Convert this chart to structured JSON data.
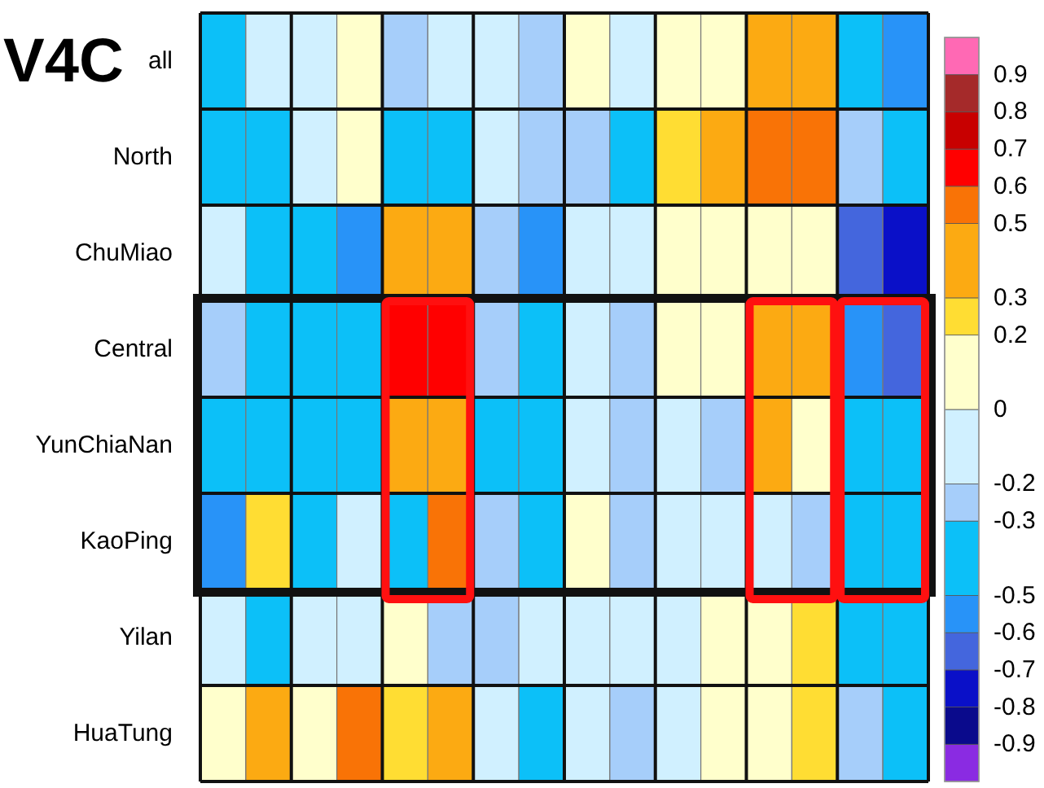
{
  "chart_data": {
    "type": "heatmap",
    "title": "V4C",
    "categories": [
      null,
      null,
      null,
      null,
      null,
      null,
      null,
      null,
      null,
      null,
      null,
      null,
      null,
      null,
      null,
      null
    ],
    "y_categories": [
      "all",
      "North",
      "ChuMiao",
      "Central",
      "YunChiaNan",
      "KaoPing",
      "Yilan",
      "HuaTung"
    ],
    "cells": [
      [
        -0.4,
        -0.1,
        -0.1,
        0.1,
        -0.25,
        -0.1,
        -0.1,
        -0.25,
        0.1,
        -0.1,
        0.1,
        0.1,
        0.4,
        0.4,
        -0.4,
        -0.55
      ],
      [
        -0.4,
        -0.4,
        -0.1,
        0.1,
        -0.4,
        -0.4,
        -0.1,
        -0.25,
        -0.25,
        -0.4,
        0.25,
        0.4,
        0.55,
        0.55,
        -0.25,
        -0.4
      ],
      [
        -0.1,
        -0.4,
        -0.4,
        -0.55,
        0.4,
        0.4,
        -0.25,
        -0.55,
        -0.1,
        -0.1,
        0.1,
        0.1,
        0.1,
        0.1,
        -0.65,
        -0.75
      ],
      [
        -0.25,
        -0.4,
        -0.4,
        -0.4,
        0.65,
        0.65,
        -0.25,
        -0.4,
        -0.1,
        -0.25,
        0.1,
        0.1,
        0.4,
        0.4,
        -0.55,
        -0.65
      ],
      [
        -0.4,
        -0.4,
        -0.4,
        -0.4,
        0.4,
        0.4,
        -0.4,
        -0.4,
        -0.1,
        -0.25,
        -0.1,
        -0.25,
        0.4,
        0.1,
        -0.4,
        -0.4
      ],
      [
        -0.55,
        0.25,
        -0.4,
        -0.1,
        -0.4,
        0.55,
        -0.25,
        -0.4,
        0.1,
        -0.25,
        -0.1,
        -0.1,
        -0.1,
        -0.25,
        -0.4,
        -0.4
      ],
      [
        -0.1,
        -0.4,
        -0.1,
        -0.1,
        0.1,
        -0.25,
        -0.25,
        -0.1,
        -0.1,
        -0.1,
        -0.1,
        0.1,
        0.1,
        0.25,
        -0.4,
        -0.4
      ],
      [
        0.1,
        0.4,
        0.1,
        0.55,
        0.25,
        0.4,
        -0.1,
        -0.4,
        -0.1,
        -0.25,
        -0.1,
        0.1,
        0.1,
        0.25,
        -0.25,
        -0.4
      ]
    ],
    "clim": [
      -1,
      1
    ],
    "cticks": [
      -0.9,
      -0.8,
      -0.7,
      -0.6,
      -0.5,
      -0.3,
      -0.2,
      0,
      0.2,
      0.3,
      0.5,
      0.6,
      0.7,
      0.8,
      0.9
    ],
    "colors": [
      "#8a2be2",
      "#0a0a8c",
      "#0a10c8",
      "#4466dd",
      "#2893f8",
      "#0cc0f8",
      "#a6cefa",
      "#d0f0ff",
      "#ffffcc",
      "#ffdd33",
      "#fcaa12",
      "#f97306",
      "#ff0000",
      "#c80000",
      "#a52a2a",
      "#ff69b4"
    ]
  }
}
